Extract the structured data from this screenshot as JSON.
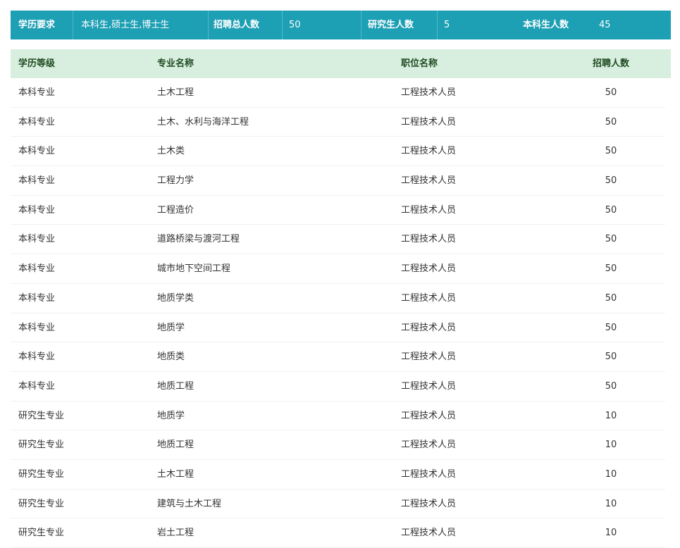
{
  "summary": {
    "edu_label": "学历要求",
    "edu_value": "本科生,硕士生,博士生",
    "total_label": "招聘总人数",
    "total_value": "50",
    "grad_label": "研究生人数",
    "grad_value": "5",
    "ug_label": "本科生人数",
    "ug_value": "45"
  },
  "table": {
    "headers": [
      "学历等级",
      "专业名称",
      "职位名称",
      "招聘人数"
    ],
    "rows": [
      [
        "本科专业",
        "土木工程",
        "工程技术人员",
        "50"
      ],
      [
        "本科专业",
        "土木、水利与海洋工程",
        "工程技术人员",
        "50"
      ],
      [
        "本科专业",
        "土木类",
        "工程技术人员",
        "50"
      ],
      [
        "本科专业",
        "工程力学",
        "工程技术人员",
        "50"
      ],
      [
        "本科专业",
        "工程造价",
        "工程技术人员",
        "50"
      ],
      [
        "本科专业",
        "道路桥梁与渡河工程",
        "工程技术人员",
        "50"
      ],
      [
        "本科专业",
        "城市地下空间工程",
        "工程技术人员",
        "50"
      ],
      [
        "本科专业",
        "地质学类",
        "工程技术人员",
        "50"
      ],
      [
        "本科专业",
        "地质学",
        "工程技术人员",
        "50"
      ],
      [
        "本科专业",
        "地质类",
        "工程技术人员",
        "50"
      ],
      [
        "本科专业",
        "地质工程",
        "工程技术人员",
        "50"
      ],
      [
        "研究生专业",
        "地质学",
        "工程技术人员",
        "10"
      ],
      [
        "研究生专业",
        "地质工程",
        "工程技术人员",
        "10"
      ],
      [
        "研究生专业",
        "土木工程",
        "工程技术人员",
        "10"
      ],
      [
        "研究生专业",
        "建筑与土木工程",
        "工程技术人员",
        "10"
      ],
      [
        "研究生专业",
        "岩土工程",
        "工程技术人员",
        "10"
      ]
    ]
  }
}
